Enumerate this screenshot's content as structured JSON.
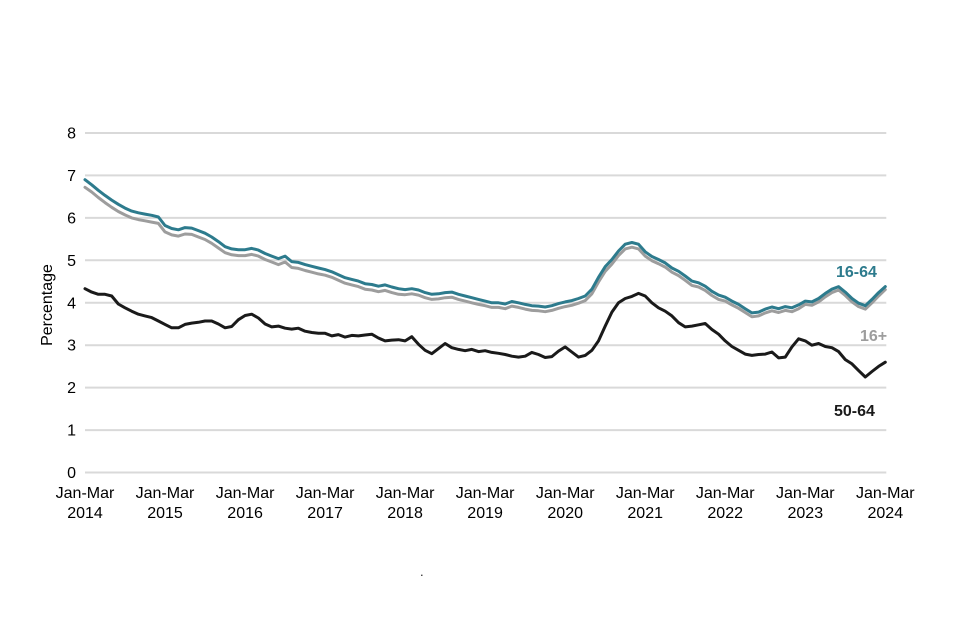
{
  "page": {
    "background": "#ffffff"
  },
  "annotations": {
    "stray_dot": "."
  },
  "chart_data": {
    "type": "line",
    "title": "",
    "xlabel": "",
    "ylabel": "Percentage",
    "ylim": [
      0,
      8
    ],
    "yticks": [
      0,
      1,
      2,
      3,
      4,
      5,
      6,
      7,
      8
    ],
    "grid": "horizontal-only",
    "grid_color": "#d9d9d9",
    "text_color": "#000000",
    "legend_position": "line-end-labels-right",
    "points_per_year": 12,
    "x_period_style": "rolling-3-month-windows",
    "x_tick_labels": [
      {
        "top": "Jan-Mar",
        "bottom": "2014"
      },
      {
        "top": "Jan-Mar",
        "bottom": "2015"
      },
      {
        "top": "Jan-Mar",
        "bottom": "2016"
      },
      {
        "top": "Jan-Mar",
        "bottom": "2017"
      },
      {
        "top": "Jan-Mar",
        "bottom": "2018"
      },
      {
        "top": "Jan-Mar",
        "bottom": "2019"
      },
      {
        "top": "Jan-Mar",
        "bottom": "2020"
      },
      {
        "top": "Jan-Mar",
        "bottom": "2021"
      },
      {
        "top": "Jan-Mar",
        "bottom": "2022"
      },
      {
        "top": "Jan-Mar",
        "bottom": "2023"
      },
      {
        "top": "Jan-Mar",
        "bottom": "2024"
      }
    ],
    "series": [
      {
        "name": "16-64",
        "color": "#2d7b8d",
        "values": [
          6.9,
          6.78,
          6.65,
          6.53,
          6.42,
          6.32,
          6.23,
          6.16,
          6.12,
          6.09,
          6.06,
          6.02,
          5.82,
          5.75,
          5.72,
          5.77,
          5.76,
          5.7,
          5.64,
          5.55,
          5.44,
          5.32,
          5.27,
          5.25,
          5.25,
          5.28,
          5.24,
          5.16,
          5.1,
          5.04,
          5.1,
          4.97,
          4.95,
          4.9,
          4.86,
          4.82,
          4.78,
          4.73,
          4.66,
          4.59,
          4.55,
          4.51,
          4.45,
          4.43,
          4.39,
          4.42,
          4.37,
          4.33,
          4.31,
          4.33,
          4.3,
          4.24,
          4.2,
          4.21,
          4.24,
          4.25,
          4.2,
          4.16,
          4.12,
          4.08,
          4.04,
          4.0,
          4.0,
          3.97,
          4.03,
          4.0,
          3.96,
          3.93,
          3.92,
          3.9,
          3.93,
          3.98,
          4.02,
          4.05,
          4.1,
          4.16,
          4.32,
          4.6,
          4.85,
          5.02,
          5.22,
          5.38,
          5.42,
          5.38,
          5.2,
          5.09,
          5.02,
          4.94,
          4.82,
          4.74,
          4.63,
          4.51,
          4.47,
          4.39,
          4.27,
          4.18,
          4.13,
          4.04,
          3.96,
          3.86,
          3.76,
          3.78,
          3.85,
          3.9,
          3.86,
          3.91,
          3.88,
          3.95,
          4.04,
          4.02,
          4.1,
          4.22,
          4.32,
          4.38,
          4.25,
          4.1,
          3.99,
          3.93,
          4.08,
          4.24,
          4.38
        ]
      },
      {
        "name": "16+",
        "color": "#9d9d9d",
        "values": [
          6.72,
          6.61,
          6.48,
          6.36,
          6.25,
          6.15,
          6.07,
          6.0,
          5.96,
          5.93,
          5.9,
          5.87,
          5.67,
          5.6,
          5.57,
          5.62,
          5.61,
          5.55,
          5.49,
          5.4,
          5.29,
          5.18,
          5.13,
          5.11,
          5.11,
          5.14,
          5.1,
          5.02,
          4.96,
          4.9,
          4.96,
          4.83,
          4.81,
          4.76,
          4.72,
          4.68,
          4.65,
          4.6,
          4.53,
          4.46,
          4.42,
          4.38,
          4.32,
          4.3,
          4.26,
          4.29,
          4.24,
          4.2,
          4.19,
          4.21,
          4.18,
          4.12,
          4.08,
          4.09,
          4.12,
          4.13,
          4.08,
          4.04,
          4.0,
          3.96,
          3.93,
          3.89,
          3.89,
          3.86,
          3.92,
          3.89,
          3.85,
          3.82,
          3.81,
          3.79,
          3.82,
          3.87,
          3.91,
          3.94,
          3.99,
          4.05,
          4.21,
          4.49,
          4.74,
          4.91,
          5.11,
          5.27,
          5.31,
          5.27,
          5.1,
          4.99,
          4.92,
          4.84,
          4.72,
          4.64,
          4.53,
          4.41,
          4.37,
          4.29,
          4.17,
          4.08,
          4.04,
          3.95,
          3.87,
          3.77,
          3.67,
          3.69,
          3.76,
          3.81,
          3.77,
          3.82,
          3.79,
          3.86,
          3.96,
          3.94,
          4.02,
          4.14,
          4.24,
          4.3,
          4.17,
          4.02,
          3.91,
          3.85,
          4.0,
          4.16,
          4.31
        ]
      },
      {
        "name": "50-64",
        "color": "#1a1a1a",
        "values": [
          4.33,
          4.25,
          4.2,
          4.2,
          4.16,
          3.97,
          3.88,
          3.8,
          3.73,
          3.69,
          3.65,
          3.57,
          3.49,
          3.41,
          3.41,
          3.49,
          3.52,
          3.54,
          3.57,
          3.57,
          3.5,
          3.41,
          3.44,
          3.6,
          3.7,
          3.73,
          3.64,
          3.5,
          3.43,
          3.45,
          3.4,
          3.38,
          3.4,
          3.33,
          3.3,
          3.28,
          3.28,
          3.22,
          3.25,
          3.19,
          3.23,
          3.22,
          3.24,
          3.26,
          3.17,
          3.1,
          3.12,
          3.13,
          3.1,
          3.2,
          3.02,
          2.88,
          2.8,
          2.92,
          3.04,
          2.94,
          2.9,
          2.87,
          2.9,
          2.85,
          2.87,
          2.83,
          2.81,
          2.78,
          2.74,
          2.72,
          2.74,
          2.83,
          2.78,
          2.71,
          2.73,
          2.86,
          2.96,
          2.84,
          2.72,
          2.76,
          2.88,
          3.1,
          3.45,
          3.78,
          4.0,
          4.1,
          4.15,
          4.22,
          4.16,
          4.0,
          3.88,
          3.8,
          3.69,
          3.53,
          3.43,
          3.45,
          3.48,
          3.51,
          3.37,
          3.26,
          3.1,
          2.97,
          2.88,
          2.79,
          2.76,
          2.78,
          2.79,
          2.84,
          2.7,
          2.72,
          2.96,
          3.15,
          3.1,
          3.0,
          3.04,
          2.97,
          2.94,
          2.85,
          2.66,
          2.56,
          2.4,
          2.25,
          2.38,
          2.5,
          2.6
        ]
      }
    ]
  }
}
